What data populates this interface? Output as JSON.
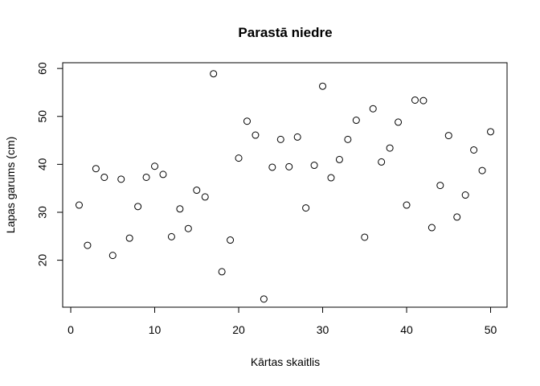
{
  "chart_data": {
    "type": "scatter",
    "title": "Parastā niedre",
    "xlabel": "Kārtas skaitlis",
    "ylabel": "Lapas garums (cm)",
    "xlim": [
      -0.96,
      51.96
    ],
    "ylim": [
      10.2,
      61.2
    ],
    "x_ticks": [
      0,
      10,
      20,
      30,
      40,
      50
    ],
    "y_ticks": [
      20,
      30,
      40,
      50,
      60
    ],
    "grid": false,
    "x": [
      1,
      2,
      3,
      4,
      5,
      6,
      7,
      8,
      9,
      10,
      11,
      12,
      13,
      14,
      15,
      16,
      17,
      18,
      19,
      20,
      21,
      22,
      23,
      24,
      25,
      26,
      27,
      28,
      29,
      30,
      31,
      32,
      33,
      34,
      35,
      36,
      37,
      38,
      39,
      40,
      41,
      42,
      43,
      44,
      45,
      46,
      47,
      48,
      49,
      50
    ],
    "y": [
      31.5,
      23.1,
      39.1,
      37.3,
      21.0,
      36.9,
      24.6,
      31.2,
      37.3,
      39.6,
      37.9,
      24.9,
      30.7,
      26.6,
      34.6,
      33.2,
      58.9,
      17.6,
      24.2,
      41.3,
      49.0,
      46.1,
      11.9,
      39.4,
      45.2,
      39.5,
      45.7,
      30.9,
      39.8,
      56.3,
      37.2,
      41.0,
      45.2,
      49.2,
      24.8,
      51.6,
      40.5,
      43.4,
      48.8,
      31.5,
      53.4,
      53.3,
      26.8,
      35.6,
      46.0,
      29.0,
      33.6,
      43.0,
      38.7,
      46.8
    ]
  }
}
